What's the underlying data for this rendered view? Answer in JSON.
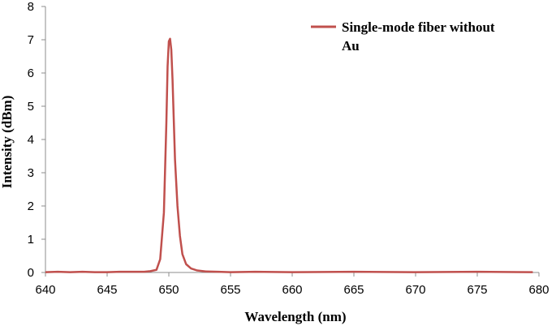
{
  "chart_data": {
    "type": "line",
    "xlabel": "Wavelength (nm)",
    "ylabel": "Intensity (dBm)",
    "xlim": [
      640,
      680
    ],
    "ylim": [
      0,
      8
    ],
    "x_ticks": [
      640,
      645,
      650,
      655,
      660,
      665,
      670,
      675,
      680
    ],
    "y_ticks": [
      0,
      1,
      2,
      3,
      4,
      5,
      6,
      7,
      8
    ],
    "grid": false,
    "legend_position": "top-right",
    "legend_lines": [
      "Single-mode fiber without",
      "Au"
    ],
    "series": [
      {
        "name": "Single-mode fiber without Au",
        "color": "#c0504d",
        "x": [
          640,
          641,
          642,
          643,
          644,
          645,
          646,
          647,
          648,
          648.5,
          649,
          649.3,
          649.6,
          649.8,
          649.9,
          650.0,
          650.1,
          650.2,
          650.3,
          650.4,
          650.5,
          650.7,
          650.9,
          651.1,
          651.4,
          651.8,
          652.3,
          653,
          654,
          655,
          657,
          660,
          665,
          670,
          675,
          679.5
        ],
        "y": [
          0.01,
          0.02,
          0.01,
          0.02,
          0.01,
          0.01,
          0.02,
          0.02,
          0.02,
          0.04,
          0.08,
          0.4,
          1.8,
          4.5,
          6.2,
          6.95,
          7.03,
          6.7,
          5.8,
          4.6,
          3.4,
          2.0,
          1.1,
          0.55,
          0.25,
          0.12,
          0.06,
          0.03,
          0.02,
          0.01,
          0.02,
          0.01,
          0.02,
          0.01,
          0.02,
          0.01
        ]
      }
    ]
  }
}
